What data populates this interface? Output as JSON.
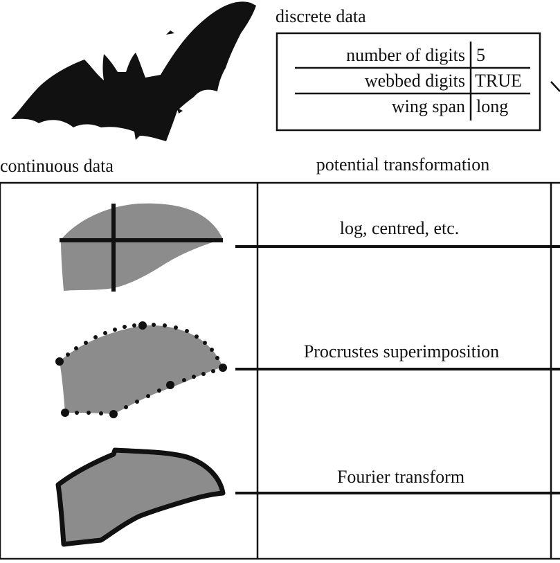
{
  "discrete": {
    "title": "discrete data",
    "rows": [
      {
        "label": "number of digits",
        "value": "5"
      },
      {
        "label": "webbed digits",
        "value": "TRUE"
      },
      {
        "label": "wing span",
        "value": "long"
      }
    ]
  },
  "continuous": {
    "title": "continuous data"
  },
  "transformation": {
    "title": "potential transformation",
    "items": [
      {
        "label": "log, centred, etc."
      },
      {
        "label": "Procrustes superimposition"
      },
      {
        "label": "Fourier transform"
      }
    ]
  },
  "colors": {
    "silhouette": "#111111",
    "wing_fill": "#8c8c8c",
    "line": "#111111"
  },
  "icons": {
    "bat": "bat-silhouette-icon",
    "wing_measured": "wing-linear-measurements-icon",
    "wing_landmarks": "wing-landmarks-icon",
    "wing_outline": "wing-outline-icon"
  }
}
